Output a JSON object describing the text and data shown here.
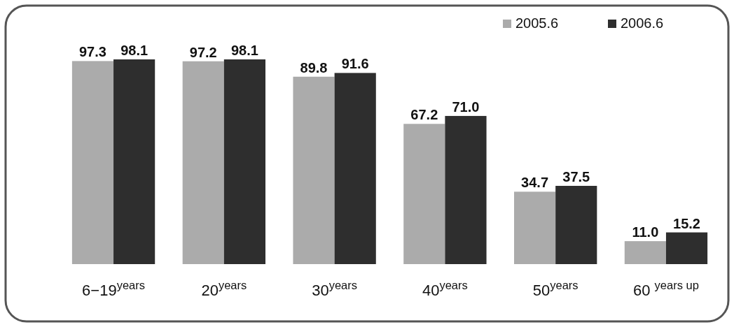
{
  "chart_data": {
    "type": "bar",
    "categories": [
      "6−19$^{years}$",
      "20$^{years}$",
      "30$^{years}$",
      "40$^{years}$",
      "50$^{years}$",
      "60 $^{years up}$"
    ],
    "series": [
      {
        "name": "2005.6",
        "color": "#ababab",
        "values": [
          97.3,
          97.2,
          89.8,
          67.2,
          34.7,
          11.0
        ],
        "value_labels": [
          "97.3",
          "97.2",
          "89.8",
          "67.2",
          "34.7",
          "11.0"
        ]
      },
      {
        "name": "2006.6",
        "color": "#2e2e2e",
        "values": [
          98.1,
          98.1,
          91.6,
          71.0,
          37.5,
          15.2
        ],
        "value_labels": [
          "98.1",
          "98.1",
          "91.6",
          "71.0",
          "37.5",
          "15.2"
        ]
      }
    ],
    "legend": "top right"
  }
}
